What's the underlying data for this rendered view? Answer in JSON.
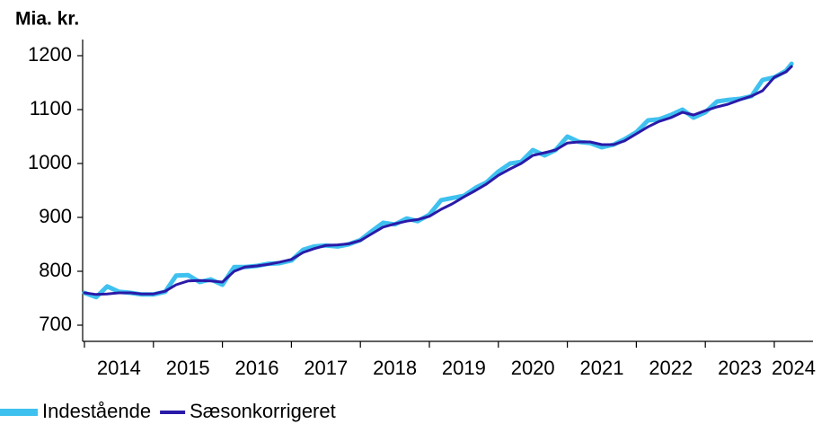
{
  "chart_data": {
    "type": "line",
    "y_label": "Mia. kr.",
    "x": [
      2014,
      2014.17,
      2014.33,
      2014.5,
      2014.67,
      2014.83,
      2015,
      2015.17,
      2015.33,
      2015.5,
      2015.67,
      2015.83,
      2016,
      2016.17,
      2016.33,
      2016.5,
      2016.67,
      2016.83,
      2017,
      2017.17,
      2017.33,
      2017.5,
      2017.67,
      2017.83,
      2018,
      2018.17,
      2018.33,
      2018.5,
      2018.67,
      2018.83,
      2019,
      2019.17,
      2019.33,
      2019.5,
      2019.67,
      2019.83,
      2020,
      2020.17,
      2020.33,
      2020.5,
      2020.67,
      2020.83,
      2021,
      2021.17,
      2021.33,
      2021.5,
      2021.67,
      2021.83,
      2022,
      2022.17,
      2022.33,
      2022.5,
      2022.67,
      2022.83,
      2023,
      2023.17,
      2023.33,
      2023.5,
      2023.67,
      2023.83,
      2024,
      2024.17,
      2024.25
    ],
    "series": [
      {
        "name": "Indestående",
        "color": "#3fc1f0",
        "values": [
          760,
          752,
          772,
          762,
          760,
          757,
          757,
          762,
          792,
          793,
          780,
          785,
          775,
          808,
          808,
          810,
          814,
          815,
          820,
          840,
          846,
          848,
          846,
          850,
          858,
          875,
          890,
          887,
          898,
          893,
          905,
          932,
          936,
          940,
          955,
          965,
          985,
          1000,
          1003,
          1025,
          1015,
          1025,
          1050,
          1040,
          1038,
          1030,
          1035,
          1045,
          1058,
          1080,
          1082,
          1090,
          1100,
          1085,
          1095,
          1115,
          1118,
          1120,
          1125,
          1155,
          1160,
          1172,
          1185
        ]
      },
      {
        "name": "Sæsonkorrigeret",
        "color": "#2a1aa8",
        "values": [
          760,
          757,
          758,
          760,
          760,
          758,
          758,
          763,
          775,
          782,
          783,
          782,
          780,
          800,
          808,
          810,
          813,
          817,
          822,
          835,
          842,
          848,
          849,
          851,
          857,
          870,
          882,
          888,
          893,
          896,
          902,
          915,
          925,
          938,
          950,
          962,
          978,
          990,
          1000,
          1015,
          1020,
          1025,
          1038,
          1040,
          1040,
          1035,
          1035,
          1042,
          1055,
          1068,
          1078,
          1085,
          1095,
          1090,
          1098,
          1105,
          1110,
          1118,
          1125,
          1135,
          1160,
          1170,
          1180
        ]
      }
    ],
    "xlim": [
      2014,
      2024.56
    ],
    "xticks": [
      2014,
      2015,
      2016,
      2017,
      2018,
      2019,
      2020,
      2021,
      2022,
      2023,
      2024
    ],
    "ylim": [
      670,
      1230
    ],
    "yticks": [
      700,
      800,
      900,
      1000,
      1100,
      1200
    ],
    "grid": false,
    "legend": "bottom"
  }
}
